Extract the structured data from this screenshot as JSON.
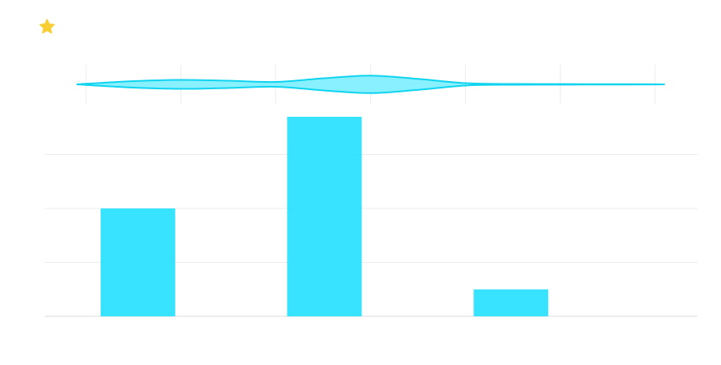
{
  "toolbar": {
    "icon": "star-icon"
  },
  "colors": {
    "bar": "#22e0ff",
    "violin_fill": "#7ceeff",
    "violin_stroke": "#0fd3ef",
    "grid": "#ececec",
    "star": "#f7cf34"
  },
  "chart_data": [
    {
      "type": "bar",
      "categories": [
        "",
        "",
        ""
      ],
      "x": [
        1,
        3,
        5
      ],
      "values": [
        2,
        3.7,
        0.5
      ],
      "ylim": [
        0,
        4
      ],
      "xlim": [
        0,
        7
      ],
      "grid": true,
      "title": "",
      "xlabel": "",
      "ylabel": ""
    },
    {
      "type": "area",
      "shape": "violin",
      "x": [
        -0.1,
        0.5,
        1.0,
        1.5,
        2.0,
        2.5,
        3.0,
        3.5,
        4.0,
        4.5,
        5.0,
        5.5,
        6.0,
        6.1
      ],
      "density": [
        0.0,
        0.33,
        0.46,
        0.37,
        0.25,
        0.62,
        0.9,
        0.56,
        0.12,
        0.04,
        0.03,
        0.02,
        0.01,
        0.0
      ],
      "xlim": [
        0,
        6
      ],
      "grid": true
    }
  ]
}
